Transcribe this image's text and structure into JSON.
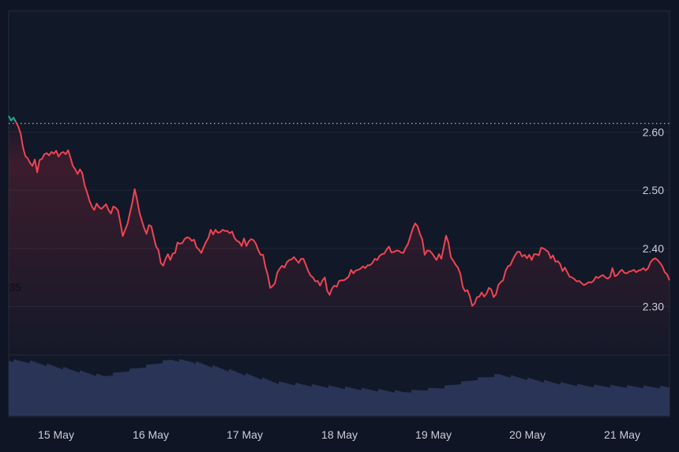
{
  "chart_data": {
    "type": "line",
    "title": "",
    "xlabel": "",
    "ylabel": "",
    "x_ticks": [
      "15 May",
      "16 May",
      "17 May",
      "18 May",
      "19 May",
      "20 May",
      "21 May"
    ],
    "y_ticks": [
      "2.30",
      "2.40",
      "2.50",
      "2.60"
    ],
    "ylim": [
      2.2165,
      2.8085
    ],
    "grid": "horizontal",
    "partial_label": "35",
    "open_value": 2.615,
    "series": [
      {
        "values": [
          2.628,
          2.62,
          2.625,
          2.618,
          2.61,
          2.598,
          2.574,
          2.559,
          2.555,
          2.547,
          2.542,
          2.553,
          2.531,
          2.552,
          2.554,
          2.562,
          2.564,
          2.56,
          2.566,
          2.563,
          2.568,
          2.558,
          2.564,
          2.566,
          2.562,
          2.569,
          2.556,
          2.542,
          2.536,
          2.528,
          2.536,
          2.529,
          2.508,
          2.496,
          2.482,
          2.472,
          2.466,
          2.477,
          2.471,
          2.468,
          2.472,
          2.476,
          2.466,
          2.46,
          2.472,
          2.47,
          2.465,
          2.444,
          2.421,
          2.432,
          2.442,
          2.461,
          2.479,
          2.502,
          2.484,
          2.462,
          2.448,
          2.435,
          2.425,
          2.44,
          2.438,
          2.42,
          2.403,
          2.397,
          2.375,
          2.37,
          2.382,
          2.39,
          2.38,
          2.391,
          2.392,
          2.41,
          2.408,
          2.409,
          2.416,
          2.419,
          2.418,
          2.413,
          2.415,
          2.402,
          2.398,
          2.392,
          2.402,
          2.411,
          2.418,
          2.432,
          2.424,
          2.432,
          2.427,
          2.428,
          2.432,
          2.43,
          2.43,
          2.426,
          2.429,
          2.418,
          2.413,
          2.411,
          2.404,
          2.417,
          2.404,
          2.412,
          2.416,
          2.414,
          2.408,
          2.397,
          2.389,
          2.389,
          2.368,
          2.354,
          2.332,
          2.335,
          2.34,
          2.358,
          2.365,
          2.37,
          2.367,
          2.376,
          2.38,
          2.381,
          2.385,
          2.38,
          2.375,
          2.382,
          2.382,
          2.372,
          2.361,
          2.353,
          2.35,
          2.343,
          2.344,
          2.336,
          2.345,
          2.35,
          2.327,
          2.32,
          2.331,
          2.336,
          2.334,
          2.344,
          2.345,
          2.345,
          2.348,
          2.351,
          2.363,
          2.357,
          2.362,
          2.363,
          2.365,
          2.369,
          2.366,
          2.371,
          2.371,
          2.375,
          2.382,
          2.38,
          2.387,
          2.39,
          2.391,
          2.398,
          2.403,
          2.393,
          2.394,
          2.396,
          2.396,
          2.393,
          2.392,
          2.401,
          2.408,
          2.421,
          2.434,
          2.443,
          2.438,
          2.425,
          2.415,
          2.389,
          2.396,
          2.396,
          2.392,
          2.386,
          2.38,
          2.39,
          2.382,
          2.402,
          2.422,
          2.41,
          2.385,
          2.379,
          2.372,
          2.367,
          2.356,
          2.334,
          2.326,
          2.328,
          2.317,
          2.301,
          2.305,
          2.316,
          2.317,
          2.324,
          2.317,
          2.322,
          2.332,
          2.329,
          2.316,
          2.321,
          2.337,
          2.342,
          2.345,
          2.361,
          2.369,
          2.371,
          2.38,
          2.388,
          2.394,
          2.394,
          2.386,
          2.389,
          2.383,
          2.389,
          2.38,
          2.39,
          2.39,
          2.388,
          2.401,
          2.4,
          2.397,
          2.394,
          2.383,
          2.388,
          2.377,
          2.378,
          2.373,
          2.361,
          2.367,
          2.359,
          2.351,
          2.35,
          2.347,
          2.343,
          2.344,
          2.34,
          2.337,
          2.339,
          2.342,
          2.341,
          2.344,
          2.351,
          2.349,
          2.352,
          2.354,
          2.35,
          2.348,
          2.351,
          2.366,
          2.352,
          2.354,
          2.36,
          2.363,
          2.358,
          2.357,
          2.36,
          2.361,
          2.363,
          2.359,
          2.362,
          2.363,
          2.366,
          2.362,
          2.366,
          2.376,
          2.381,
          2.383,
          2.38,
          2.375,
          2.369,
          2.359,
          2.355,
          2.345
        ],
        "color": "#ef4452"
      }
    ],
    "volume_color": "#2a3456",
    "rise_color": "#1fae89"
  }
}
